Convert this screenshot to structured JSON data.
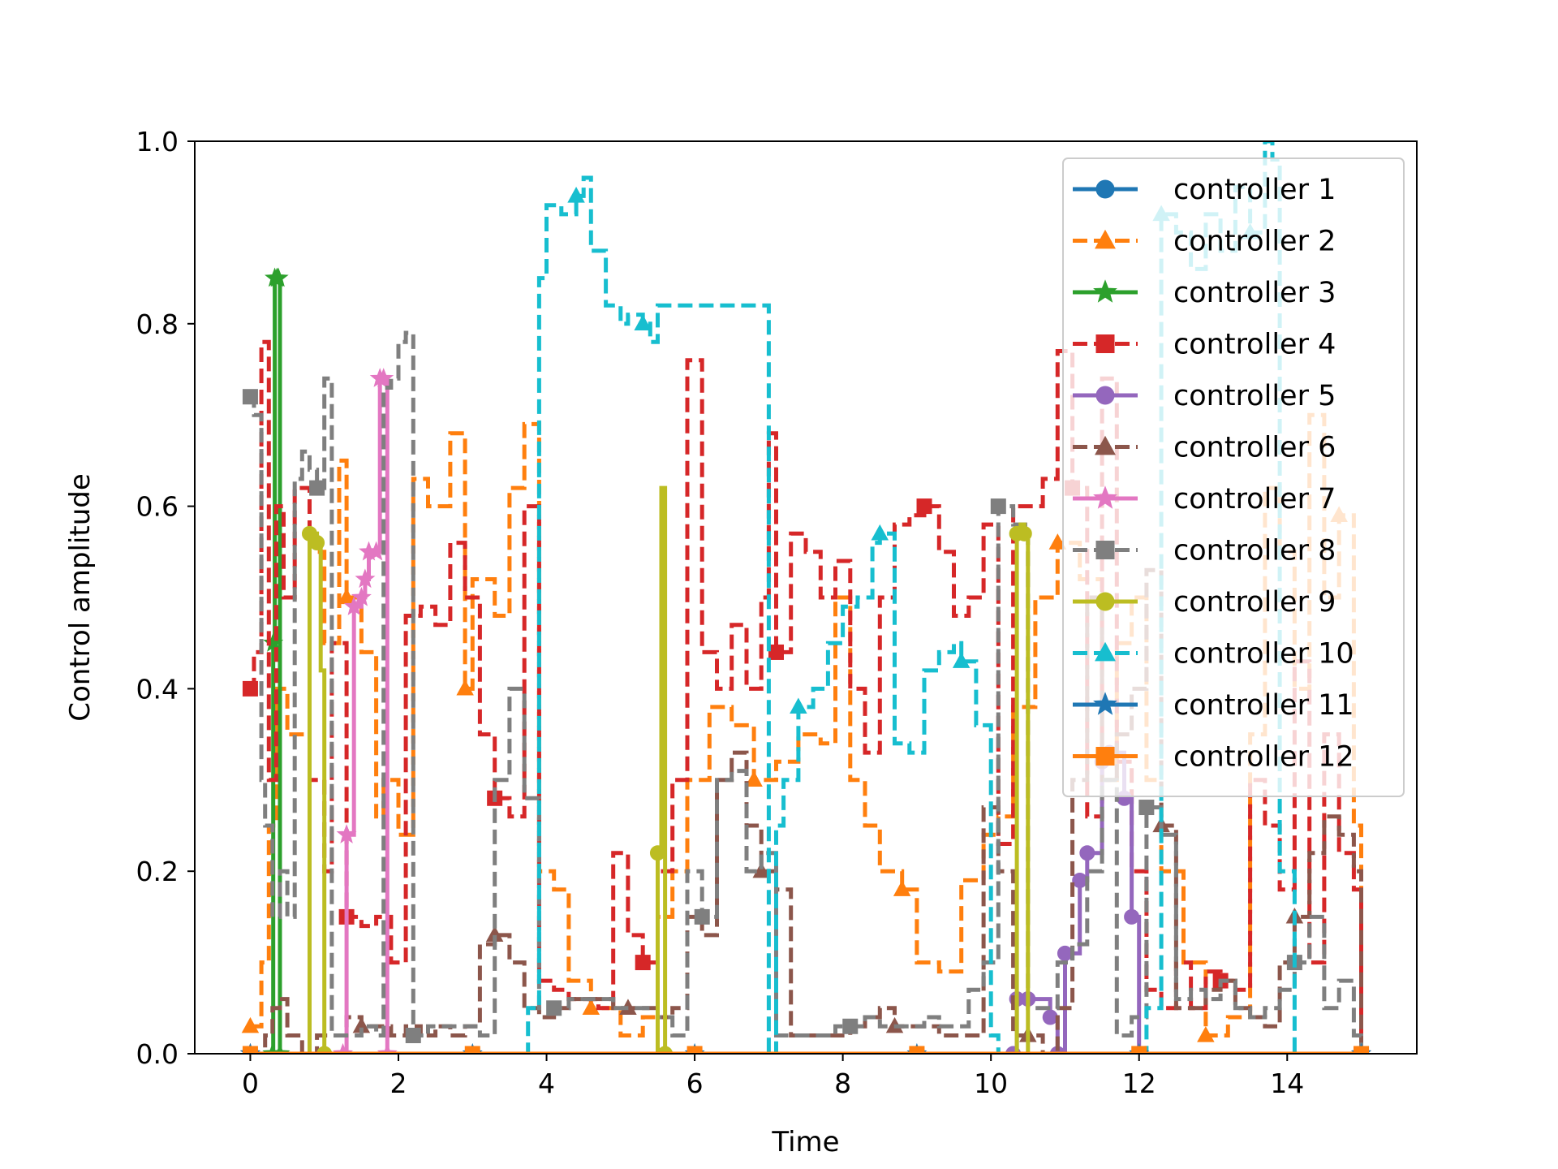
{
  "chart_data": {
    "type": "line",
    "title": "",
    "xlabel": "Time",
    "ylabel": "Control amplitude",
    "xlim": [
      -0.75,
      15.75
    ],
    "ylim": [
      0.0,
      1.0
    ],
    "grid": false,
    "legend_position": "upper-right",
    "xticks": [
      0,
      2,
      4,
      6,
      8,
      10,
      12,
      14
    ],
    "xtick_labels": [
      "0",
      "2",
      "4",
      "6",
      "8",
      "10",
      "12",
      "14"
    ],
    "yticks": [
      0.0,
      0.2,
      0.4,
      0.6,
      0.8,
      1.0
    ],
    "ytick_labels": [
      "0.0",
      "0.2",
      "0.4",
      "0.6",
      "0.8",
      "1.0"
    ],
    "series": [
      {
        "name": "controller 1",
        "color": "#1f77b4",
        "dash": "solid",
        "marker": "circle",
        "x": [
          0,
          3,
          6,
          9,
          12,
          15
        ],
        "y": [
          0,
          0,
          0,
          0,
          0,
          0
        ]
      },
      {
        "name": "controller 2",
        "color": "#ff7f0e",
        "dash": "dashed",
        "marker": "triangle",
        "x": [
          0,
          0.15,
          0.25,
          0.35,
          0.5,
          0.8,
          1.0,
          1.2,
          1.3,
          1.5,
          1.7,
          1.8,
          2.0,
          2.2,
          2.4,
          2.7,
          2.9,
          3.0,
          3.3,
          3.5,
          3.7,
          3.9,
          4.1,
          4.3,
          4.6,
          5.0,
          5.3,
          5.5,
          5.7,
          5.9,
          6.2,
          6.5,
          6.8,
          7.1,
          7.4,
          7.7,
          7.9,
          8.1,
          8.3,
          8.5,
          8.8,
          9.0,
          9.3,
          9.6,
          9.9,
          10.1,
          10.3,
          10.6,
          10.9,
          11.2,
          11.5,
          11.7,
          11.9,
          12.1,
          12.3,
          12.6,
          12.9,
          13.2,
          13.5,
          13.7,
          13.9,
          14.1,
          14.3,
          14.5,
          14.7,
          14.9,
          15.0
        ],
        "y": [
          0.03,
          0.1,
          0.25,
          0.4,
          0.35,
          0.55,
          0.45,
          0.65,
          0.5,
          0.44,
          0.26,
          0.3,
          0.24,
          0.63,
          0.6,
          0.68,
          0.4,
          0.52,
          0.48,
          0.62,
          0.69,
          0.2,
          0.18,
          0.08,
          0.05,
          0.02,
          0.04,
          0.15,
          0.2,
          0.3,
          0.38,
          0.36,
          0.3,
          0.32,
          0.35,
          0.34,
          0.5,
          0.3,
          0.25,
          0.2,
          0.18,
          0.1,
          0.09,
          0.19,
          0.24,
          0.26,
          0.38,
          0.5,
          0.56,
          0.52,
          0.3,
          0.45,
          0.5,
          0.3,
          0.2,
          0.1,
          0.02,
          0.04,
          0.35,
          0.62,
          0.55,
          0.4,
          0.7,
          0.5,
          0.59,
          0.25,
          0.0
        ]
      },
      {
        "name": "controller 3",
        "color": "#2ca02c",
        "dash": "solid",
        "marker": "star",
        "x": [
          0,
          0.3,
          0.31,
          0.33,
          0.36,
          0.38,
          0.4,
          15.0
        ],
        "y": [
          0,
          0,
          0.45,
          0.85,
          0.85,
          0.85,
          0,
          0
        ]
      },
      {
        "name": "controller 4",
        "color": "#d62728",
        "dash": "dashed",
        "marker": "square",
        "x": [
          0,
          0.05,
          0.15,
          0.25,
          0.35,
          0.45,
          0.6,
          0.8,
          1.0,
          1.1,
          1.3,
          1.5,
          1.7,
          1.9,
          2.1,
          2.3,
          2.5,
          2.7,
          2.9,
          3.1,
          3.3,
          3.5,
          3.7,
          3.9,
          4.1,
          4.3,
          4.5,
          4.7,
          4.9,
          5.1,
          5.3,
          5.5,
          5.7,
          5.9,
          6.1,
          6.3,
          6.5,
          6.7,
          6.9,
          7.0,
          7.1,
          7.3,
          7.5,
          7.7,
          7.9,
          8.1,
          8.3,
          8.5,
          8.7,
          8.9,
          9.1,
          9.3,
          9.5,
          9.7,
          9.9,
          10.1,
          10.3,
          10.5,
          10.7,
          10.9,
          11.1,
          11.3,
          11.5,
          11.7,
          11.9,
          12.1,
          12.3,
          12.5,
          12.7,
          12.9,
          13.1,
          13.3,
          13.5,
          13.7,
          13.9,
          14.1,
          14.3,
          14.5,
          14.7,
          14.9,
          15.0
        ],
        "y": [
          0.4,
          0.44,
          0.78,
          0.3,
          0.6,
          0.5,
          0.62,
          0.3,
          0.2,
          0.45,
          0.15,
          0.14,
          0.15,
          0.1,
          0.48,
          0.49,
          0.47,
          0.56,
          0.5,
          0.35,
          0.28,
          0.26,
          0.6,
          0.08,
          0.07,
          0.06,
          0.06,
          0.05,
          0.22,
          0.13,
          0.1,
          0.2,
          0.3,
          0.76,
          0.44,
          0.4,
          0.47,
          0.4,
          0.5,
          0.68,
          0.44,
          0.57,
          0.55,
          0.5,
          0.54,
          0.4,
          0.33,
          0.5,
          0.58,
          0.59,
          0.6,
          0.55,
          0.48,
          0.5,
          0.58,
          0.23,
          0.6,
          0.6,
          0.63,
          0.77,
          0.62,
          0.26,
          0.74,
          0.32,
          0.2,
          0.07,
          0.05,
          0.1,
          0.05,
          0.09,
          0.08,
          0.07,
          0.3,
          0.25,
          0.18,
          0.43,
          0.1,
          0.35,
          0.22,
          0.18,
          0.0
        ]
      },
      {
        "name": "controller 5",
        "color": "#9467bd",
        "dash": "solid",
        "marker": "circle",
        "x": [
          0,
          10.3,
          10.35,
          10.5,
          10.8,
          10.9,
          11.0,
          11.2,
          11.3,
          11.5,
          11.6,
          11.8,
          11.9,
          12.0,
          15.0
        ],
        "y": [
          0,
          0,
          0.06,
          0.06,
          0.04,
          0.0,
          0.11,
          0.19,
          0.22,
          0.32,
          0.33,
          0.28,
          0.15,
          0.0,
          0.0
        ]
      },
      {
        "name": "controller 6",
        "color": "#8c564b",
        "dash": "dashed",
        "marker": "triangle",
        "x": [
          0,
          0.2,
          0.3,
          0.4,
          0.5,
          0.7,
          0.9,
          1.1,
          1.3,
          1.5,
          1.7,
          1.9,
          2.1,
          2.3,
          2.5,
          2.7,
          2.9,
          3.1,
          3.3,
          3.5,
          3.7,
          3.9,
          4.1,
          4.3,
          4.5,
          4.7,
          4.9,
          5.1,
          5.3,
          5.5,
          5.7,
          5.9,
          6.1,
          6.3,
          6.5,
          6.7,
          6.9,
          7.1,
          7.3,
          7.5,
          7.7,
          7.9,
          8.1,
          8.3,
          8.5,
          8.7,
          8.9,
          9.1,
          9.3,
          9.5,
          9.7,
          9.9,
          10.1,
          10.3,
          10.5,
          10.7,
          10.9,
          11.1,
          11.3,
          11.5,
          11.7,
          11.9,
          12.1,
          12.3,
          12.5,
          12.7,
          12.9,
          13.1,
          13.3,
          13.5,
          13.7,
          13.9,
          14.1,
          14.3,
          14.5,
          14.7,
          14.9,
          15.0
        ],
        "y": [
          0,
          0.02,
          0.05,
          0.06,
          0.02,
          0.0,
          0.02,
          0.02,
          0.04,
          0.03,
          0.03,
          0.02,
          0.03,
          0.02,
          0.03,
          0.02,
          0.03,
          0.12,
          0.13,
          0.1,
          0.05,
          0.04,
          0.05,
          0.06,
          0.06,
          0.06,
          0.05,
          0.05,
          0.05,
          0.04,
          0.05,
          0.15,
          0.13,
          0.3,
          0.33,
          0.25,
          0.2,
          0.18,
          0.02,
          0.02,
          0.02,
          0.02,
          0.03,
          0.04,
          0.05,
          0.03,
          0.03,
          0.03,
          0.02,
          0.02,
          0.02,
          0.27,
          0.2,
          0.02,
          0.02,
          0.0,
          0.05,
          0.3,
          0.5,
          0.3,
          0.35,
          0.4,
          0.53,
          0.25,
          0.05,
          0.05,
          0.07,
          0.08,
          0.05,
          0.04,
          0.03,
          0.1,
          0.15,
          0.22,
          0.26,
          0.24,
          0.2,
          0.0
        ]
      },
      {
        "name": "controller 7",
        "color": "#e377c2",
        "dash": "solid",
        "marker": "star",
        "x": [
          0,
          1.25,
          1.3,
          1.4,
          1.5,
          1.55,
          1.6,
          1.7,
          1.75,
          1.8,
          1.85,
          15.0
        ],
        "y": [
          0,
          0,
          0.24,
          0.49,
          0.5,
          0.52,
          0.55,
          0.55,
          0.74,
          0.74,
          0.0,
          0.0
        ]
      },
      {
        "name": "controller 8",
        "color": "#7f7f7f",
        "dash": "dashed",
        "marker": "square",
        "x": [
          0,
          0.05,
          0.15,
          0.2,
          0.3,
          0.4,
          0.5,
          0.6,
          0.7,
          0.8,
          0.9,
          1.0,
          1.1,
          1.3,
          1.5,
          1.7,
          1.8,
          1.9,
          2.0,
          2.1,
          2.2,
          2.4,
          2.6,
          2.8,
          3.0,
          3.1,
          3.3,
          3.5,
          3.7,
          3.9,
          4.1,
          4.3,
          4.5,
          4.7,
          4.9,
          5.1,
          5.3,
          5.5,
          5.7,
          5.9,
          6.1,
          6.3,
          6.5,
          6.7,
          6.9,
          7.1,
          7.3,
          7.5,
          7.7,
          7.9,
          8.1,
          8.3,
          8.5,
          8.7,
          8.9,
          9.1,
          9.3,
          9.5,
          9.7,
          9.9,
          10.1,
          10.3,
          10.5,
          10.7,
          10.9,
          11.1,
          11.3,
          11.5,
          11.7,
          11.9,
          12.1,
          12.3,
          12.5,
          12.7,
          12.9,
          13.1,
          13.3,
          13.5,
          13.7,
          13.9,
          14.1,
          14.3,
          14.5,
          14.7,
          14.9,
          15.0
        ],
        "y": [
          0.72,
          0.7,
          0.3,
          0.25,
          0.15,
          0.2,
          0.15,
          0.63,
          0.66,
          0.64,
          0.62,
          0.74,
          0.02,
          0.02,
          0.03,
          0.02,
          0.73,
          0.74,
          0.78,
          0.79,
          0.02,
          0.03,
          0.03,
          0.03,
          0.03,
          0.02,
          0.3,
          0.4,
          0.28,
          0.05,
          0.05,
          0.06,
          0.06,
          0.06,
          0.05,
          0.05,
          0.05,
          0.04,
          0.02,
          0.2,
          0.15,
          0.3,
          0.31,
          0.2,
          0.22,
          0.02,
          0.02,
          0.02,
          0.02,
          0.03,
          0.03,
          0.04,
          0.03,
          0.03,
          0.03,
          0.04,
          0.03,
          0.03,
          0.07,
          0.1,
          0.6,
          0.58,
          0.05,
          0.05,
          0.1,
          0.12,
          0.2,
          0.3,
          0.02,
          0.04,
          0.27,
          0.24,
          0.06,
          0.07,
          0.06,
          0.08,
          0.05,
          0.04,
          0.05,
          0.07,
          0.1,
          0.15,
          0.05,
          0.08,
          0.02,
          0.0
        ]
      },
      {
        "name": "controller 9",
        "color": "#bcbd22",
        "dash": "solid",
        "marker": "circle",
        "x": [
          0,
          0.75,
          0.8,
          0.85,
          0.9,
          0.95,
          1.0,
          5.45,
          5.5,
          5.55,
          5.6,
          10.3,
          10.35,
          10.4,
          10.45,
          10.5,
          15.0
        ],
        "y": [
          0,
          0,
          0.57,
          0.57,
          0.56,
          0.42,
          0,
          0,
          0.22,
          0.62,
          0,
          0,
          0.57,
          0.58,
          0.57,
          0,
          0
        ]
      },
      {
        "name": "controller 10",
        "color": "#17becf",
        "dash": "dashed",
        "marker": "triangle",
        "x": [
          0,
          3.6,
          3.75,
          3.9,
          4.0,
          4.2,
          4.4,
          4.5,
          4.6,
          4.8,
          5.0,
          5.1,
          5.3,
          5.4,
          5.5,
          7.0,
          7.1,
          7.2,
          7.4,
          7.6,
          7.8,
          8.0,
          8.2,
          8.4,
          8.5,
          8.7,
          8.9,
          9.1,
          9.3,
          9.5,
          9.6,
          9.8,
          10.0,
          10.1,
          12.0,
          12.1,
          12.3,
          12.5,
          12.7,
          12.9,
          13.1,
          13.3,
          13.5,
          13.7,
          13.8,
          13.9,
          14.1,
          15.0
        ],
        "y": [
          0,
          0,
          0.05,
          0.85,
          0.93,
          0.92,
          0.94,
          0.96,
          0.88,
          0.82,
          0.8,
          0.81,
          0.8,
          0.78,
          0.82,
          0.0,
          0.25,
          0.3,
          0.38,
          0.4,
          0.45,
          0.49,
          0.5,
          0.56,
          0.57,
          0.34,
          0.33,
          0.42,
          0.44,
          0.45,
          0.43,
          0.36,
          0.02,
          0.0,
          0.0,
          0.05,
          0.92,
          0.9,
          0.86,
          0.92,
          0.88,
          0.95,
          0.9,
          1.0,
          0.98,
          0.2,
          0.0,
          0.0
        ]
      },
      {
        "name": "controller 11",
        "color": "#1f77b4",
        "dash": "solid",
        "marker": "star",
        "x": [
          0,
          3,
          6,
          9,
          12,
          15
        ],
        "y": [
          0,
          0,
          0,
          0,
          0,
          0
        ]
      },
      {
        "name": "controller 12",
        "color": "#ff7f0e",
        "dash": "solid",
        "marker": "square",
        "x": [
          0,
          3,
          6,
          9,
          12,
          15
        ],
        "y": [
          0,
          0,
          0,
          0,
          0,
          0
        ]
      }
    ]
  }
}
